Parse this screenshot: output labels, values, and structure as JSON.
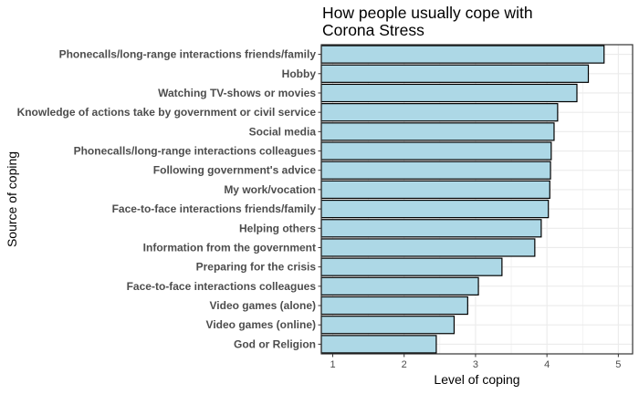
{
  "chart_data": {
    "type": "bar",
    "orientation": "horizontal",
    "title_lines": [
      "How people usually cope with",
      "Corona Stress"
    ],
    "xlabel": "Level of coping",
    "ylabel": "Source of coping",
    "xlim": [
      0.84,
      5.2
    ],
    "xticks": [
      1,
      2,
      3,
      4,
      5
    ],
    "grid": true,
    "bar_fill": "#add8e6",
    "bar_stroke": "#000000",
    "categories": [
      "Phonecalls/long-range interactions friends/family",
      "Hobby",
      "Watching TV-shows or movies",
      "Knowledge of actions take by government or civil service",
      "Social media",
      "Phonecalls/long-range interactions colleagues",
      "Following government's advice",
      "My work/vocation",
      "Face-to-face interactions friends/family",
      "Helping others",
      "Information from the government",
      "Preparing for the crisis",
      "Face-to-face interactions colleagues",
      "Video games (alone)",
      "Video games (online)",
      "God or Religion"
    ],
    "values": [
      4.8,
      4.58,
      4.42,
      4.15,
      4.1,
      4.06,
      4.05,
      4.04,
      4.02,
      3.92,
      3.83,
      3.37,
      3.04,
      2.89,
      2.7,
      2.45
    ]
  }
}
